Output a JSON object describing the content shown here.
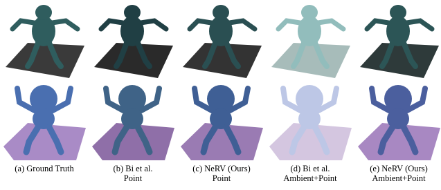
{
  "captions": [
    [
      "(a) Ground Truth"
    ],
    [
      "(b) Bi et al.",
      "Point"
    ],
    [
      "(c) NeRV (Ours)",
      "Point"
    ],
    [
      "(d) Bi et al.",
      "Ambient+Point"
    ],
    [
      "(e) NeRV (Ours)",
      "Ambient+Point"
    ]
  ]
}
